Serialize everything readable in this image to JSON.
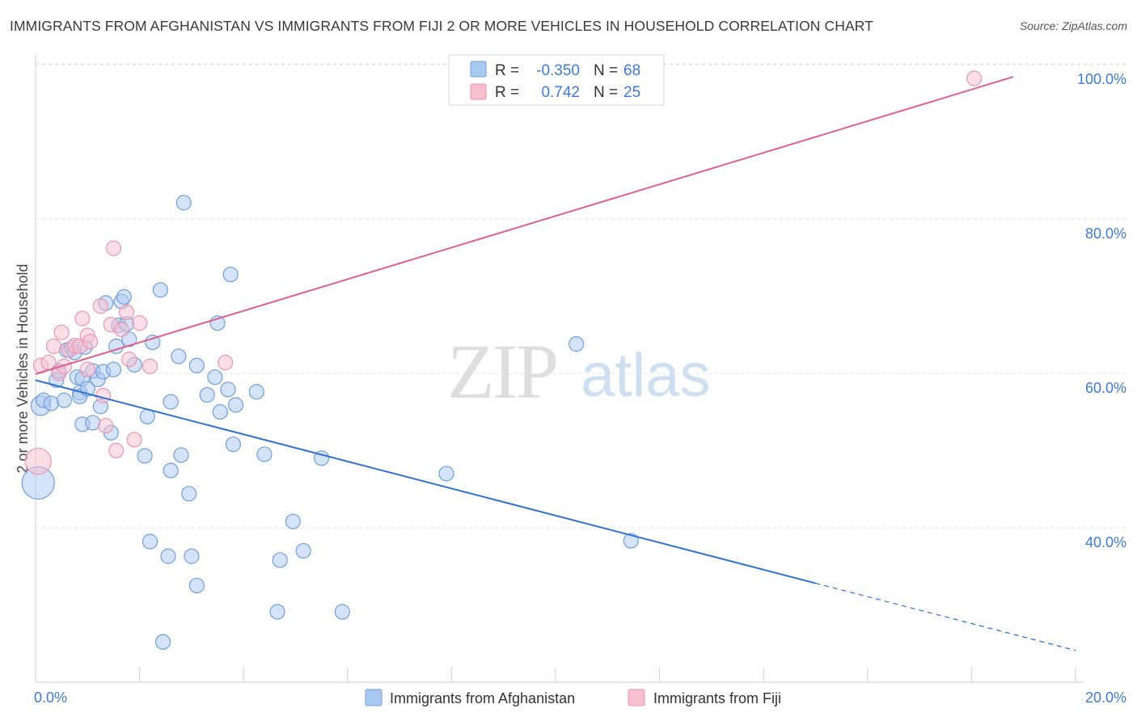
{
  "title": "IMMIGRANTS FROM AFGHANISTAN VS IMMIGRANTS FROM FIJI 2 OR MORE VEHICLES IN HOUSEHOLD CORRELATION CHART",
  "source": "Source: ZipAtlas.com",
  "watermark": {
    "zip": "ZIP",
    "atlas": "atlas"
  },
  "colors": {
    "afghanistan_fill": "#a9c8f0",
    "afghanistan_stroke": "#6f9fdc",
    "afghanistan_line": "#2f72d2",
    "fiji_fill": "#f8bfd0",
    "fiji_stroke": "#eb95b0",
    "fiji_line": "#e0608a",
    "tick_text": "#3d7bd6"
  },
  "stats": {
    "r_label": "R =",
    "n_label": "N =",
    "afghanistan": {
      "r": "-0.350",
      "n": "68"
    },
    "fiji": {
      "r": "0.742",
      "n": "25"
    }
  },
  "legend": {
    "afghanistan": "Immigrants from Afghanistan",
    "fiji": "Immigrants from Fiji"
  },
  "chart_data": {
    "type": "scatter",
    "title": "IMMIGRANTS FROM AFGHANISTAN VS IMMIGRANTS FROM FIJI 2 OR MORE VEHICLES IN HOUSEHOLD CORRELATION CHART",
    "xlabel": "",
    "ylabel": "2 or more Vehicles in Household",
    "xlim": [
      0,
      20
    ],
    "ylim": [
      22,
      102
    ],
    "x_tick_labels": [
      "0.0%",
      "20.0%"
    ],
    "y_ticks": [
      40,
      60,
      80,
      100
    ],
    "y_tick_labels": [
      "40.0%",
      "60.0%",
      "80.0%",
      "100.0%"
    ],
    "grid": "horizontal dashed",
    "legend_position": "bottom-center",
    "series": [
      {
        "name": "Immigrants from Afghanistan",
        "r": -0.35,
        "n": 68,
        "trend": {
          "x0": 0,
          "y0": 60.9,
          "x1": 15,
          "y1": 34.6,
          "dashed_to_x": 20,
          "dashed_to_y": 25.9
        },
        "points": [
          [
            0.05,
            47.6,
            20
          ],
          [
            0.1,
            57.6,
            12
          ],
          [
            0.15,
            58.3,
            9
          ],
          [
            0.3,
            57.9,
            9
          ],
          [
            0.4,
            60.9,
            9
          ],
          [
            0.45,
            62.1,
            9
          ],
          [
            0.55,
            58.3,
            9
          ],
          [
            0.6,
            64.8,
            9
          ],
          [
            0.7,
            65.1,
            9
          ],
          [
            0.75,
            64.5,
            9
          ],
          [
            0.8,
            61.3,
            9
          ],
          [
            0.85,
            59.3,
            9
          ],
          [
            0.9,
            61.1,
            9
          ],
          [
            0.85,
            58.8,
            9
          ],
          [
            0.9,
            55.2,
            9
          ],
          [
            0.95,
            65.2,
            9
          ],
          [
            1.0,
            59.8,
            9
          ],
          [
            1.1,
            55.4,
            9
          ],
          [
            1.1,
            62.1,
            9
          ],
          [
            1.2,
            61.0,
            9
          ],
          [
            1.25,
            57.5,
            9
          ],
          [
            1.3,
            62.0,
            9
          ],
          [
            1.35,
            70.9,
            9
          ],
          [
            1.45,
            54.1,
            9
          ],
          [
            1.5,
            62.3,
            9
          ],
          [
            1.55,
            65.3,
            9
          ],
          [
            1.6,
            68.0,
            9
          ],
          [
            1.65,
            71.1,
            9
          ],
          [
            1.7,
            71.7,
            9
          ],
          [
            1.75,
            68.2,
            9
          ],
          [
            1.8,
            66.2,
            9
          ],
          [
            1.9,
            62.9,
            9
          ],
          [
            2.1,
            51.1,
            9
          ],
          [
            2.15,
            56.2,
            9
          ],
          [
            2.2,
            40.0,
            9
          ],
          [
            2.25,
            65.8,
            9
          ],
          [
            2.4,
            72.6,
            9
          ],
          [
            2.45,
            27.0,
            9
          ],
          [
            2.55,
            38.1,
            9
          ],
          [
            2.6,
            58.1,
            9
          ],
          [
            2.6,
            49.2,
            9
          ],
          [
            2.75,
            64.0,
            9
          ],
          [
            2.8,
            51.2,
            9
          ],
          [
            2.85,
            83.9,
            9
          ],
          [
            2.95,
            46.2,
            9
          ],
          [
            3.0,
            38.1,
            9
          ],
          [
            3.1,
            34.3,
            9
          ],
          [
            3.1,
            62.8,
            9
          ],
          [
            3.3,
            59.0,
            9
          ],
          [
            3.45,
            61.3,
            9
          ],
          [
            3.5,
            68.3,
            9
          ],
          [
            3.55,
            56.8,
            9
          ],
          [
            3.7,
            59.7,
            9
          ],
          [
            3.75,
            74.6,
            9
          ],
          [
            3.8,
            52.6,
            9
          ],
          [
            3.85,
            57.7,
            9
          ],
          [
            4.25,
            59.4,
            9
          ],
          [
            4.4,
            51.3,
            9
          ],
          [
            4.65,
            30.9,
            9
          ],
          [
            4.7,
            37.6,
            9
          ],
          [
            4.95,
            42.6,
            9
          ],
          [
            5.15,
            38.8,
            9
          ],
          [
            5.5,
            50.8,
            9
          ],
          [
            5.9,
            30.9,
            9
          ],
          [
            7.9,
            48.8,
            9
          ],
          [
            10.4,
            65.6,
            9
          ],
          [
            11.45,
            40.1,
            9
          ]
        ]
      },
      {
        "name": "Immigrants from Fiji",
        "r": 0.742,
        "n": 25,
        "trend": {
          "x0": 0,
          "y0": 61.7,
          "x1": 18.8,
          "y1": 100.2
        },
        "points": [
          [
            0.05,
            50.4,
            16
          ],
          [
            0.1,
            62.8,
            9
          ],
          [
            0.25,
            63.2,
            9
          ],
          [
            0.35,
            65.3,
            9
          ],
          [
            0.45,
            61.8,
            9
          ],
          [
            0.5,
            67.1,
            9
          ],
          [
            0.55,
            62.7,
            9
          ],
          [
            0.65,
            64.8,
            9
          ],
          [
            0.75,
            65.4,
            9
          ],
          [
            0.85,
            65.3,
            9
          ],
          [
            0.9,
            68.9,
            9
          ],
          [
            1.0,
            66.7,
            9
          ],
          [
            1.0,
            62.3,
            9
          ],
          [
            1.05,
            65.9,
            9
          ],
          [
            1.25,
            70.5,
            9
          ],
          [
            1.3,
            58.9,
            9
          ],
          [
            1.35,
            55.0,
            9
          ],
          [
            1.45,
            68.1,
            9
          ],
          [
            1.5,
            78.0,
            9
          ],
          [
            1.55,
            51.8,
            9
          ],
          [
            1.65,
            67.5,
            9
          ],
          [
            1.75,
            69.7,
            9
          ],
          [
            1.8,
            63.6,
            9
          ],
          [
            1.9,
            53.2,
            9
          ],
          [
            2.0,
            68.3,
            9
          ],
          [
            2.2,
            62.7,
            9
          ],
          [
            3.65,
            63.2,
            9
          ],
          [
            18.05,
            100.0,
            9
          ]
        ]
      }
    ]
  }
}
